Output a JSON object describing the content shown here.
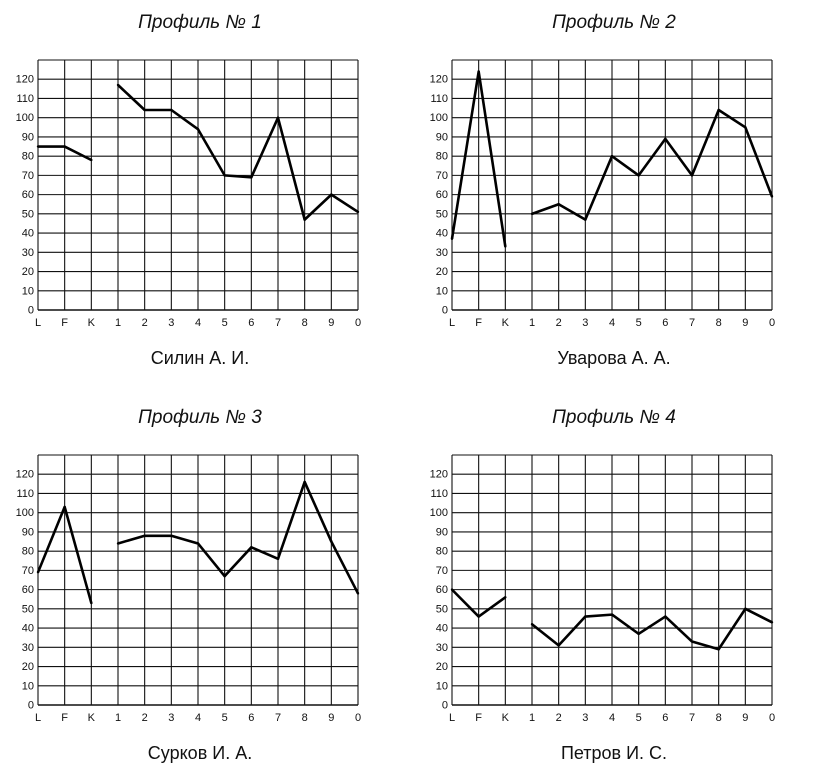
{
  "profiles": [
    {
      "title": "Профиль № 1",
      "name": "Силин А. И.",
      "chart_data": {
        "type": "line",
        "categories": [
          "L",
          "F",
          "K",
          "1",
          "2",
          "3",
          "4",
          "5",
          "6",
          "7",
          "8",
          "9",
          "0"
        ],
        "yticks": [
          0,
          10,
          20,
          30,
          40,
          50,
          60,
          70,
          80,
          90,
          100,
          110,
          120
        ],
        "ylim": [
          0,
          130
        ],
        "grid": true,
        "series": [
          {
            "values": [
              85,
              85,
              78,
              null,
              null,
              null,
              null,
              null,
              null,
              null,
              null,
              null,
              null
            ]
          },
          {
            "values": [
              null,
              null,
              null,
              117,
              104,
              104,
              94,
              70,
              69,
              100,
              47,
              60,
              51
            ]
          }
        ]
      }
    },
    {
      "title": "Профиль № 2",
      "name": "Уварова А. А.",
      "chart_data": {
        "type": "line",
        "categories": [
          "L",
          "F",
          "K",
          "1",
          "2",
          "3",
          "4",
          "5",
          "6",
          "7",
          "8",
          "9",
          "0"
        ],
        "yticks": [
          0,
          10,
          20,
          30,
          40,
          50,
          60,
          70,
          80,
          90,
          100,
          110,
          120
        ],
        "ylim": [
          0,
          130
        ],
        "grid": true,
        "series": [
          {
            "values": [
              37,
              124,
              33,
              null,
              null,
              null,
              null,
              null,
              null,
              null,
              null,
              null,
              null
            ]
          },
          {
            "values": [
              null,
              null,
              null,
              50,
              55,
              47,
              80,
              70,
              89,
              70,
              104,
              95,
              59
            ]
          }
        ]
      }
    },
    {
      "title": "Профиль № 3",
      "name": "Сурков И. А.",
      "chart_data": {
        "type": "line",
        "categories": [
          "L",
          "F",
          "K",
          "1",
          "2",
          "3",
          "4",
          "5",
          "6",
          "7",
          "8",
          "9",
          "0"
        ],
        "yticks": [
          0,
          10,
          20,
          30,
          40,
          50,
          60,
          70,
          80,
          90,
          100,
          110,
          120
        ],
        "ylim": [
          0,
          130
        ],
        "grid": true,
        "series": [
          {
            "values": [
              69,
              103,
              53,
              null,
              null,
              null,
              null,
              null,
              null,
              null,
              null,
              null,
              null
            ]
          },
          {
            "values": [
              null,
              null,
              null,
              84,
              88,
              88,
              84,
              67,
              82,
              76,
              116,
              85,
              58
            ]
          }
        ]
      }
    },
    {
      "title": "Профиль № 4",
      "name": "Петров И. С.",
      "chart_data": {
        "type": "line",
        "categories": [
          "L",
          "F",
          "K",
          "1",
          "2",
          "3",
          "4",
          "5",
          "6",
          "7",
          "8",
          "9",
          "0"
        ],
        "yticks": [
          0,
          10,
          20,
          30,
          40,
          50,
          60,
          70,
          80,
          90,
          100,
          110,
          120
        ],
        "ylim": [
          0,
          130
        ],
        "grid": true,
        "series": [
          {
            "values": [
              60,
              46,
              56,
              null,
              null,
              null,
              null,
              null,
              null,
              null,
              null,
              null,
              null
            ]
          },
          {
            "values": [
              null,
              null,
              null,
              42,
              31,
              46,
              47,
              37,
              46,
              33,
              29,
              50,
              43
            ]
          }
        ]
      }
    }
  ]
}
